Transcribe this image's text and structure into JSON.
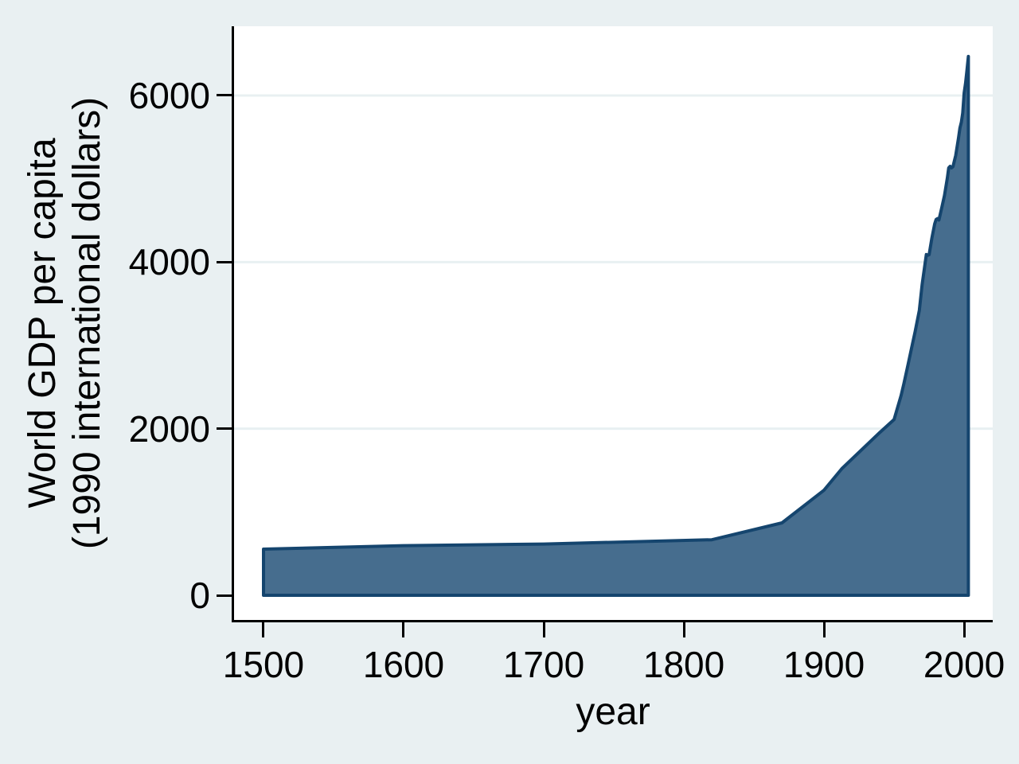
{
  "figure": {
    "background": "#e9f0f2",
    "plot_background": "#ffffff",
    "grid_color": "#e8f0f2",
    "axis_color": "#000000",
    "text_color": "#000000",
    "area_fill": "#466d8e",
    "area_stroke": "#15456e"
  },
  "chart_data": {
    "type": "area",
    "title": "",
    "xlabel": "year",
    "ylabel_line1": "World GDP per capita",
    "ylabel_line2": "(1990 international dollars)",
    "legend": "none",
    "grid": "horizontal-only",
    "x_ticks": [
      1500,
      1600,
      1700,
      1800,
      1900,
      2000
    ],
    "y_ticks": [
      0,
      2000,
      4000,
      6000
    ],
    "xlim": [
      1479,
      2020.4
    ],
    "ylim": [
      -296,
      6831
    ],
    "baseline": 0,
    "series": [
      {
        "name": "World GDP per capita",
        "points": [
          [
            1500,
            554
          ],
          [
            1600,
            596
          ],
          [
            1700,
            615
          ],
          [
            1820,
            667
          ],
          [
            1870,
            870
          ],
          [
            1900,
            1262
          ],
          [
            1913,
            1525
          ],
          [
            1940,
            1958
          ],
          [
            1950,
            2111
          ],
          [
            1952,
            2225
          ],
          [
            1955,
            2399
          ],
          [
            1957,
            2540
          ],
          [
            1960,
            2773
          ],
          [
            1963,
            3010
          ],
          [
            1965,
            3164
          ],
          [
            1968,
            3420
          ],
          [
            1970,
            3729
          ],
          [
            1973,
            4091
          ],
          [
            1974,
            4082
          ],
          [
            1975,
            4089
          ],
          [
            1977,
            4290
          ],
          [
            1979,
            4460
          ],
          [
            1980,
            4512
          ],
          [
            1981,
            4522
          ],
          [
            1982,
            4505
          ],
          [
            1984,
            4650
          ],
          [
            1986,
            4800
          ],
          [
            1988,
            5010
          ],
          [
            1989,
            5130
          ],
          [
            1990,
            5150
          ],
          [
            1991,
            5130
          ],
          [
            1992,
            5145
          ],
          [
            1994,
            5280
          ],
          [
            1996,
            5490
          ],
          [
            1997,
            5610
          ],
          [
            1998,
            5680
          ],
          [
            1999,
            5790
          ],
          [
            2000,
            6030
          ],
          [
            2001,
            6150
          ],
          [
            2002,
            6300
          ],
          [
            2003,
            6469
          ]
        ]
      }
    ]
  }
}
